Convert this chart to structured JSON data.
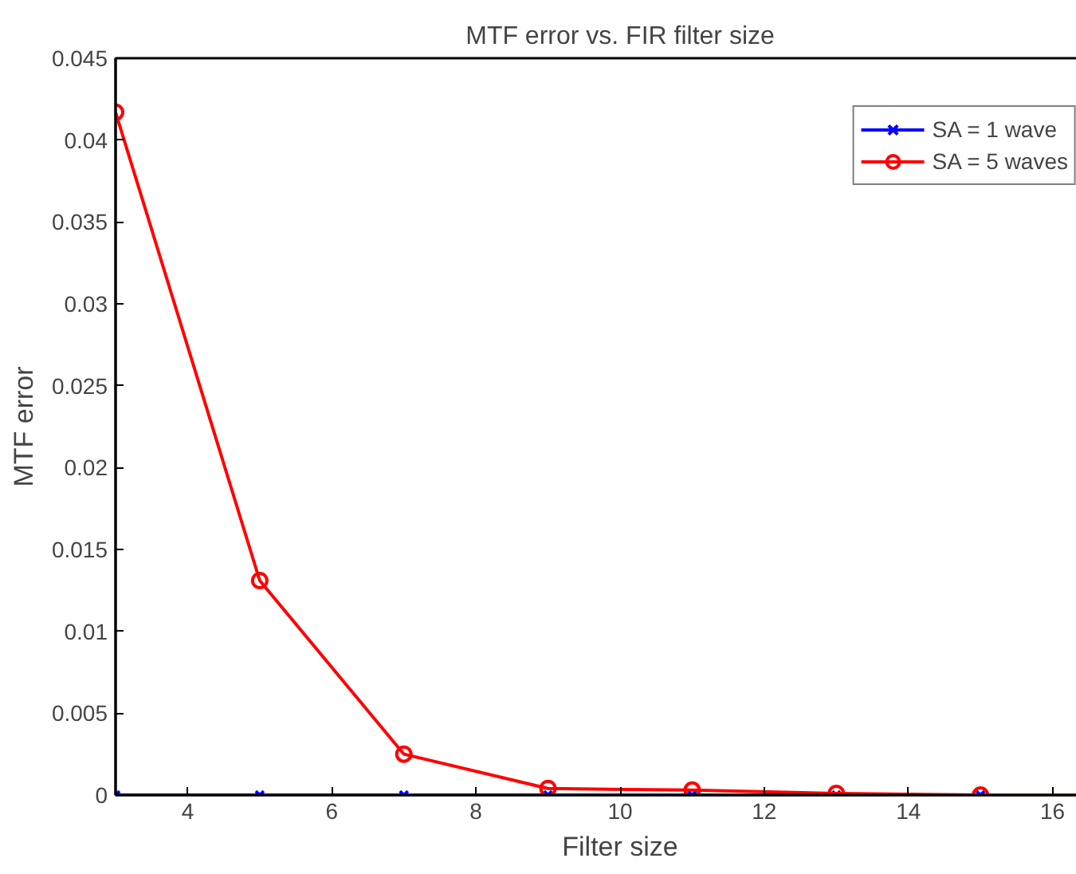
{
  "chart_data": {
    "type": "line",
    "title": "MTF error vs. FIR filter size",
    "xlabel": "Filter size",
    "ylabel": "MTF error",
    "x": [
      3,
      5,
      7,
      9,
      11,
      13,
      15,
      17
    ],
    "series": [
      {
        "name": "SA = 1 wave",
        "color": "#0000ff",
        "marker": "cross",
        "values": [
          0,
          0,
          0,
          0,
          0,
          0,
          0,
          0
        ]
      },
      {
        "name": "SA = 5 waves",
        "color": "#ff0000",
        "marker": "circle",
        "values": [
          0.0417,
          0.0131,
          0.0025,
          0.0004,
          0.0003,
          0.0001,
          0,
          0
        ]
      }
    ],
    "xlim": [
      3,
      17
    ],
    "xticks": [
      4,
      6,
      8,
      10,
      12,
      14,
      16
    ],
    "ylim": [
      0,
      0.045
    ],
    "yticks": [
      0,
      0.005,
      0.01,
      0.015,
      0.02,
      0.025,
      0.03,
      0.035,
      0.04,
      0.045
    ],
    "grid": false,
    "legend": "top right",
    "line_style": "solid"
  }
}
